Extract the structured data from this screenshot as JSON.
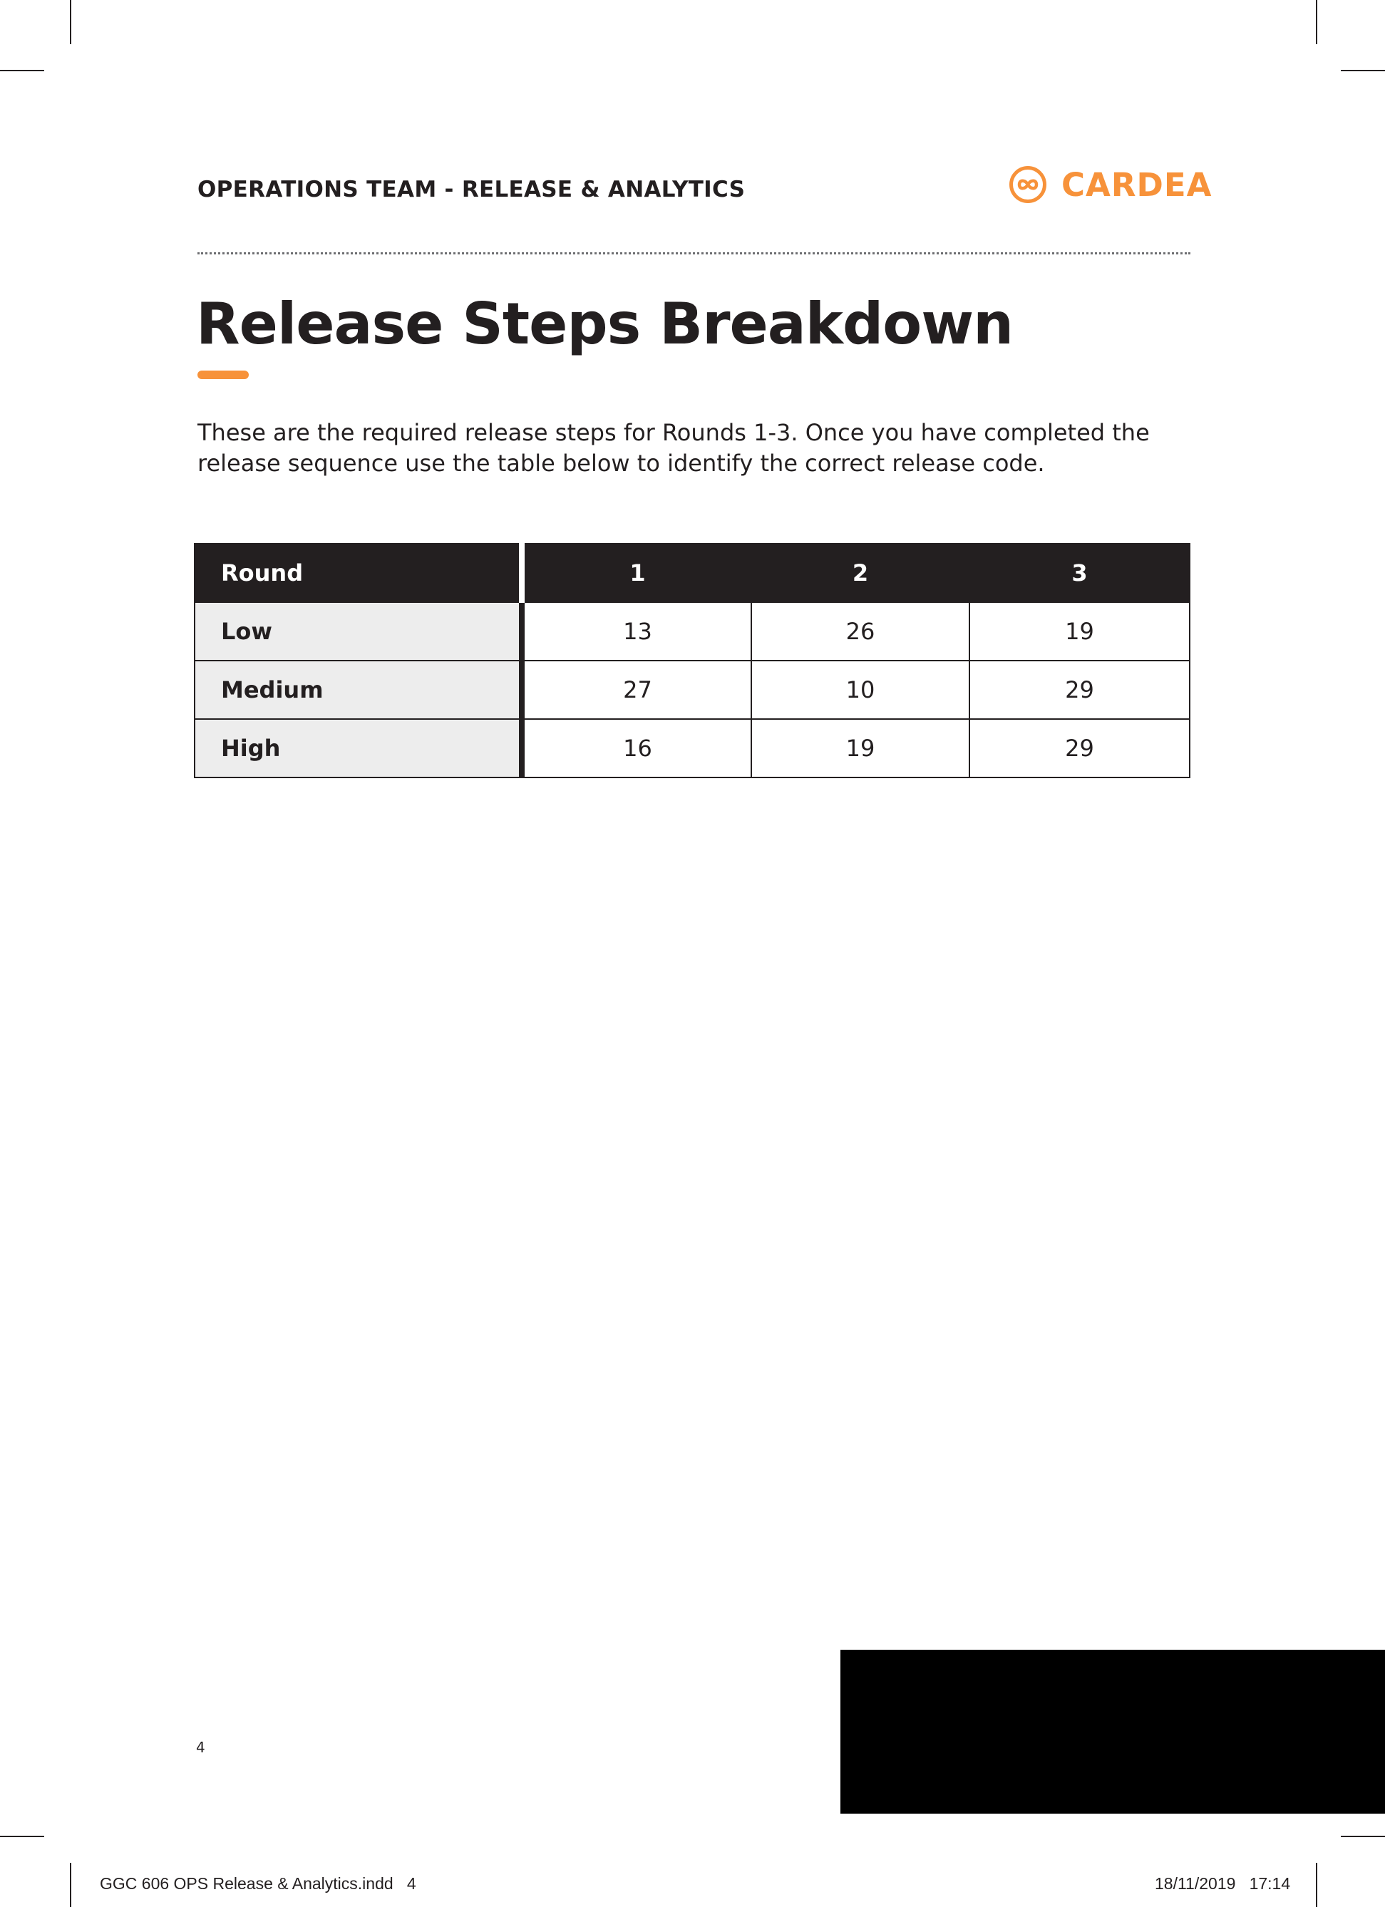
{
  "header": {
    "title": "OPERATIONS TEAM - RELEASE & ANALYTICS",
    "logo_icon": "infinity-circle-icon",
    "logo_text": "CARDEA"
  },
  "page": {
    "title": "Release Steps Breakdown",
    "intro": "These are the required release steps for Rounds 1-3. Once you have completed the release sequence use the table below to identify the correct release code."
  },
  "table": {
    "headers": [
      "Round",
      "1",
      "2",
      "3"
    ],
    "rows": [
      {
        "label": "Low",
        "values": [
          "13",
          "26",
          "19"
        ]
      },
      {
        "label": "Medium",
        "values": [
          "27",
          "10",
          "29"
        ]
      },
      {
        "label": "High",
        "values": [
          "16",
          "19",
          "29"
        ]
      }
    ]
  },
  "footer": {
    "page_number": "4",
    "slug_file": "GGC 606 OPS Release & Analytics.indd   4",
    "slug_timestamp": "18/11/2019   17:14"
  },
  "colors": {
    "accent": "#f7923a",
    "text": "#231f20",
    "row_header_bg": "#ededed"
  }
}
